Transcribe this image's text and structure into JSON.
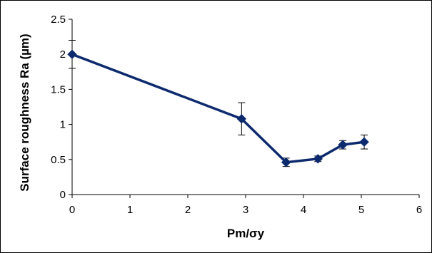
{
  "chart_data": {
    "type": "line",
    "title": "",
    "xlabel": "Pm/σy",
    "ylabel": "Surface roughness Ra (µm)",
    "xlim": [
      0,
      6
    ],
    "ylim": [
      0,
      2.5
    ],
    "xticks": [
      0,
      1,
      2,
      3,
      4,
      5,
      6
    ],
    "yticks": [
      0,
      0.5,
      1,
      1.5,
      2,
      2.5
    ],
    "ytick_labels": [
      "0",
      "0.5",
      "1",
      "1.5",
      "2",
      "2.5"
    ],
    "xtick_labels": [
      "0",
      "1",
      "2",
      "3",
      "4",
      "5",
      "6"
    ],
    "grid": false,
    "legend": "none",
    "series": [
      {
        "color": "#0d2a6e",
        "marker": "diamond",
        "x": [
          0,
          2.93,
          3.7,
          4.25,
          4.68,
          5.05
        ],
        "y": [
          2.0,
          1.08,
          0.46,
          0.51,
          0.71,
          0.75
        ],
        "error": [
          0.2,
          0.23,
          0.06,
          0.04,
          0.06,
          0.1
        ]
      }
    ]
  }
}
